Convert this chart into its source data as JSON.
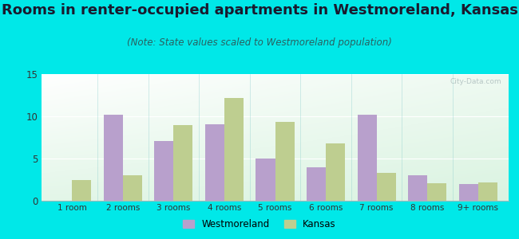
{
  "title": "Rooms in renter-occupied apartments in Westmoreland, Kansas",
  "subtitle": "(Note: State values scaled to Westmoreland population)",
  "categories": [
    "1 room",
    "2 rooms",
    "3 rooms",
    "4 rooms",
    "5 rooms",
    "6 rooms",
    "7 rooms",
    "8 rooms",
    "9+ rooms"
  ],
  "westmoreland": [
    0,
    10.2,
    7.1,
    9.1,
    5.0,
    4.0,
    10.2,
    3.0,
    2.0
  ],
  "kansas": [
    2.5,
    3.0,
    9.0,
    12.2,
    9.3,
    6.8,
    3.3,
    2.1,
    2.2
  ],
  "westmoreland_color": "#b8a0cc",
  "kansas_color": "#bece90",
  "background_outer": "#00e8e8",
  "ylim": [
    0,
    15
  ],
  "yticks": [
    0,
    5,
    10,
    15
  ],
  "bar_width": 0.38,
  "title_fontsize": 13,
  "subtitle_fontsize": 8.5,
  "legend_westmoreland": "Westmoreland",
  "legend_kansas": "Kansas",
  "title_color": "#1a1a2e",
  "subtitle_color": "#2a6060",
  "tick_color": "#333333"
}
